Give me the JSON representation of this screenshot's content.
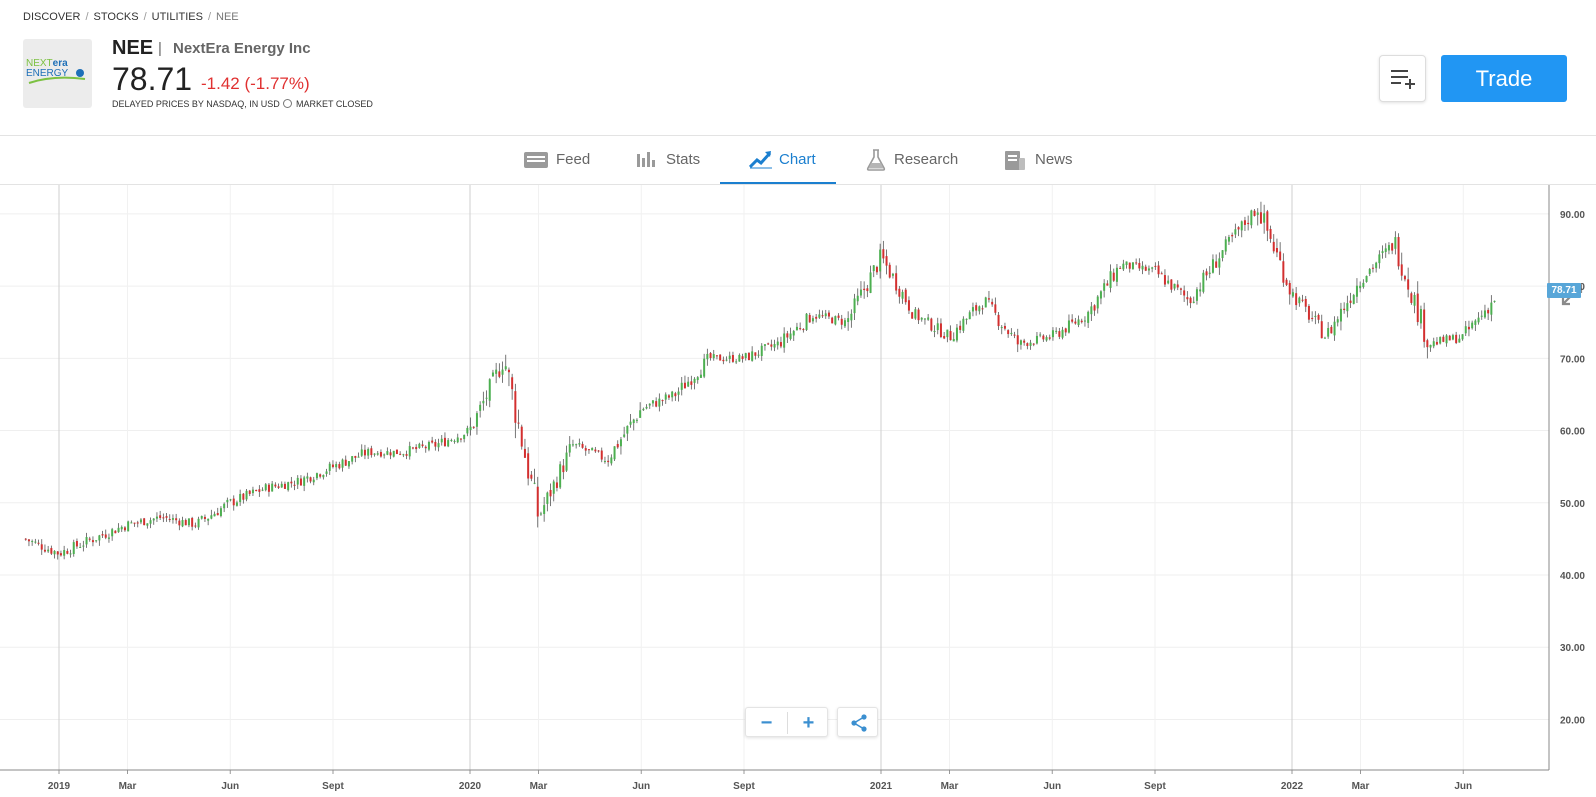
{
  "breadcrumb": [
    "DISCOVER",
    "STOCKS",
    "UTILITIES",
    "NEE"
  ],
  "instrument": {
    "ticker": "NEE",
    "name": "NextEra Energy Inc",
    "price": "78.71",
    "change": "-1.42 (-1.77%)",
    "delay_note": "DELAYED PRICES BY NASDAQ, IN USD",
    "market_status": "MARKET CLOSED",
    "logo_text": [
      "NEXTera",
      "ENERGY"
    ]
  },
  "actions": {
    "watchlist_icon": "add-to-list-icon",
    "trade_label": "Trade"
  },
  "tabs": [
    {
      "label": "Feed",
      "icon": "feed-icon"
    },
    {
      "label": "Stats",
      "icon": "bar-chart-icon"
    },
    {
      "label": "Chart",
      "icon": "trend-chart-icon",
      "active": true
    },
    {
      "label": "Research",
      "icon": "flask-icon"
    },
    {
      "label": "News",
      "icon": "newspaper-icon"
    }
  ],
  "colors": {
    "up": "#4caf50",
    "down": "#d32f2f",
    "accent": "#2196f3",
    "active_tab": "#1b7fcf",
    "change_negative": "#e03131"
  },
  "chart_data": {
    "type": "line",
    "style": "candlestick",
    "y_ticks": [
      "90.00",
      "80.00",
      "70.00",
      "60.00",
      "50.00",
      "40.00",
      "30.00",
      "20.00"
    ],
    "ylim": [
      13,
      94
    ],
    "x_ticks": [
      "2019",
      "Mar",
      "Jun",
      "Sept",
      "2020",
      "Mar",
      "Jun",
      "Sept",
      "2021",
      "Mar",
      "Jun",
      "Sept",
      "2022",
      "Mar",
      "Jun"
    ],
    "last_price_label": "78.71",
    "grid": true,
    "series": [
      {
        "x": [
          "2018-12",
          "2019-01",
          "2019-02",
          "2019-03",
          "2019-04",
          "2019-05",
          "2019-06",
          "2019-07",
          "2019-08",
          "2019-09",
          "2019-10",
          "2019-11",
          "2019-12",
          "2020-01",
          "2020-02",
          "2020-03",
          "2020-04",
          "2020-05",
          "2020-06",
          "2020-07",
          "2020-08",
          "2020-09",
          "2020-10",
          "2020-11",
          "2020-12",
          "2021-01",
          "2021-02",
          "2021-03",
          "2021-04",
          "2021-05",
          "2021-06",
          "2021-07",
          "2021-08",
          "2021-09",
          "2021-10",
          "2021-11",
          "2021-12",
          "2022-01",
          "2022-02",
          "2022-03",
          "2022-04",
          "2022-05",
          "2022-06",
          "2022-07"
        ],
        "values": [
          45,
          43,
          45,
          47,
          48,
          47,
          50,
          52,
          53,
          55,
          57,
          57,
          58,
          60,
          70,
          48,
          58,
          56,
          63,
          65,
          70,
          70,
          72,
          76,
          75,
          84,
          76,
          73,
          78,
          72,
          73,
          76,
          83,
          82,
          78,
          85,
          91,
          79,
          73,
          81,
          86,
          72,
          73,
          78.7
        ]
      }
    ]
  }
}
